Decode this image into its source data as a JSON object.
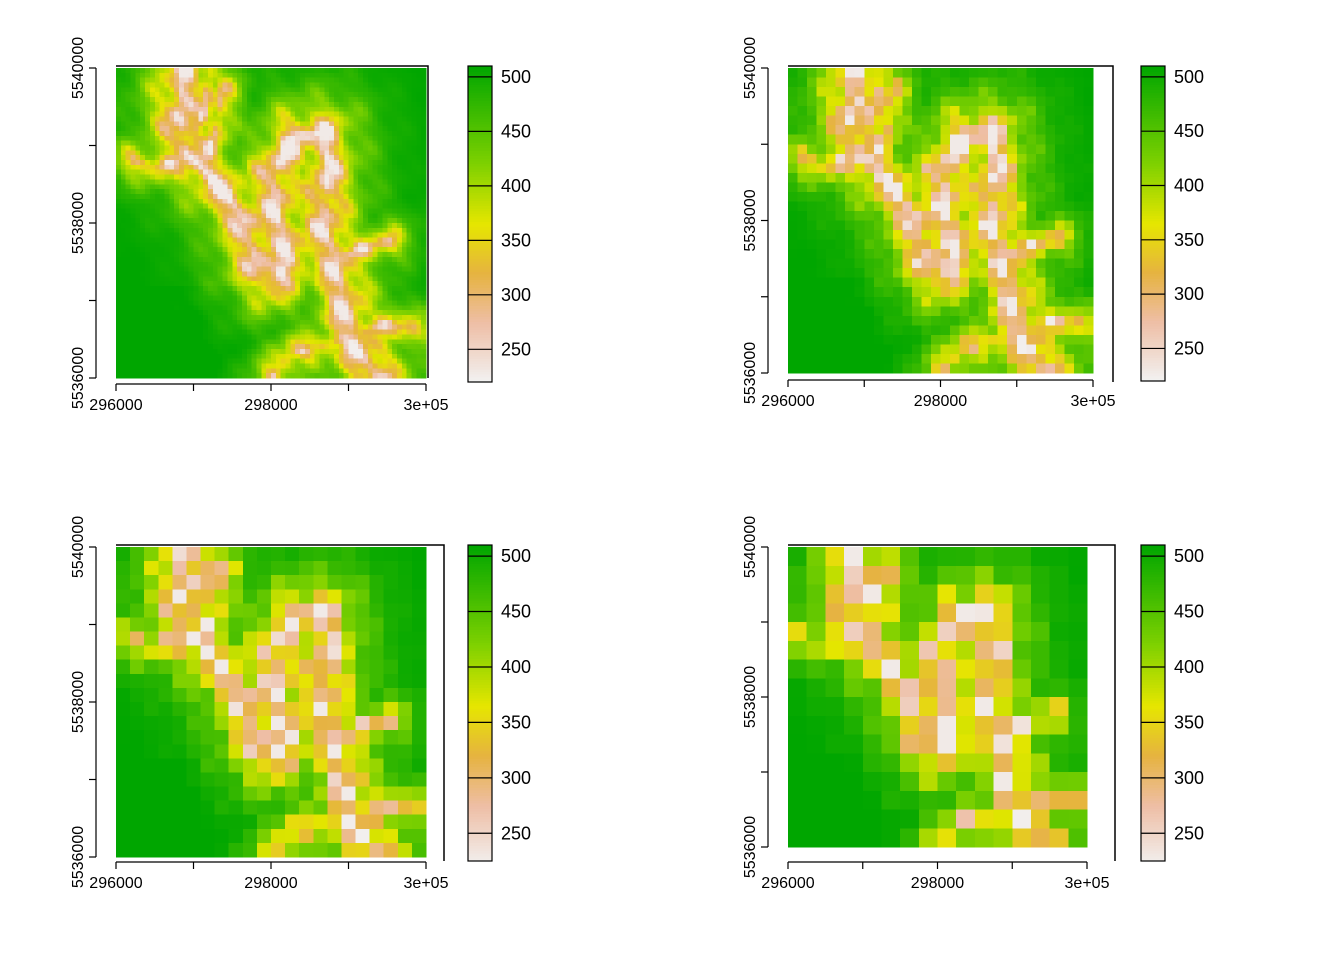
{
  "chart_data": [
    {
      "type": "heatmap",
      "grid_resolution": [
        64,
        64
      ],
      "xlim": [
        296000,
        300000
      ],
      "ylim": [
        5536000,
        5540000
      ],
      "x_ticks": [
        {
          "value": 296000,
          "label": "296000"
        },
        {
          "value": 298000,
          "label": "298000"
        },
        {
          "value": 300000,
          "label": "3e+05"
        }
      ],
      "y_ticks": [
        {
          "value": 5536000,
          "label": "5536000"
        },
        {
          "value": 5538000,
          "label": "5538000"
        },
        {
          "value": 5540000,
          "label": "5540000"
        }
      ],
      "legend": {
        "min": 220,
        "max": 510,
        "ticks": [
          250,
          300,
          350,
          400,
          450,
          500
        ],
        "labels": [
          "250",
          "300",
          "350",
          "400",
          "450",
          "500"
        ]
      }
    },
    {
      "type": "heatmap",
      "grid_resolution": [
        32,
        32
      ],
      "xlim": [
        296000,
        300000
      ],
      "ylim": [
        5536000,
        5540000
      ],
      "x_ticks": [
        {
          "value": 296000,
          "label": "296000"
        },
        {
          "value": 298000,
          "label": "298000"
        },
        {
          "value": 300000,
          "label": "3e+05"
        }
      ],
      "y_ticks": [
        {
          "value": 5536000,
          "label": "5536000"
        },
        {
          "value": 5538000,
          "label": "5538000"
        },
        {
          "value": 5540000,
          "label": "5540000"
        }
      ],
      "legend": {
        "min": 220,
        "max": 510,
        "ticks": [
          250,
          300,
          350,
          400,
          450,
          500
        ],
        "labels": [
          "250",
          "300",
          "350",
          "400",
          "450",
          "500"
        ]
      }
    },
    {
      "type": "heatmap",
      "grid_resolution": [
        22,
        22
      ],
      "xlim": [
        296000,
        300000
      ],
      "ylim": [
        5536000,
        5540000
      ],
      "x_ticks": [
        {
          "value": 296000,
          "label": "296000"
        },
        {
          "value": 298000,
          "label": "298000"
        },
        {
          "value": 300000,
          "label": "3e+05"
        }
      ],
      "y_ticks": [
        {
          "value": 5536000,
          "label": "5536000"
        },
        {
          "value": 5538000,
          "label": "5538000"
        },
        {
          "value": 5540000,
          "label": "5540000"
        }
      ],
      "legend": {
        "min": 225,
        "max": 510,
        "ticks": [
          250,
          300,
          350,
          400,
          450,
          500
        ],
        "labels": [
          "250",
          "300",
          "350",
          "400",
          "450",
          "500"
        ]
      }
    },
    {
      "type": "heatmap",
      "grid_resolution": [
        16,
        16
      ],
      "xlim": [
        296000,
        300000
      ],
      "ylim": [
        5536000,
        5540000
      ],
      "x_ticks": [
        {
          "value": 296000,
          "label": "296000"
        },
        {
          "value": 298000,
          "label": "298000"
        },
        {
          "value": 300000,
          "label": "3e+05"
        }
      ],
      "y_ticks": [
        {
          "value": 5536000,
          "label": "5536000"
        },
        {
          "value": 5538000,
          "label": "5538000"
        },
        {
          "value": 5540000,
          "label": "5540000"
        }
      ],
      "legend": {
        "min": 225,
        "max": 510,
        "ticks": [
          250,
          300,
          350,
          400,
          450,
          500
        ],
        "labels": [
          "250",
          "300",
          "350",
          "400",
          "450",
          "500"
        ]
      }
    }
  ],
  "colors": {
    "terrain_ramp": [
      "#f2f2f2",
      "#eebea5",
      "#e6b340",
      "#e6e600",
      "#7fd100",
      "#00a600"
    ],
    "axis": "#000000"
  }
}
